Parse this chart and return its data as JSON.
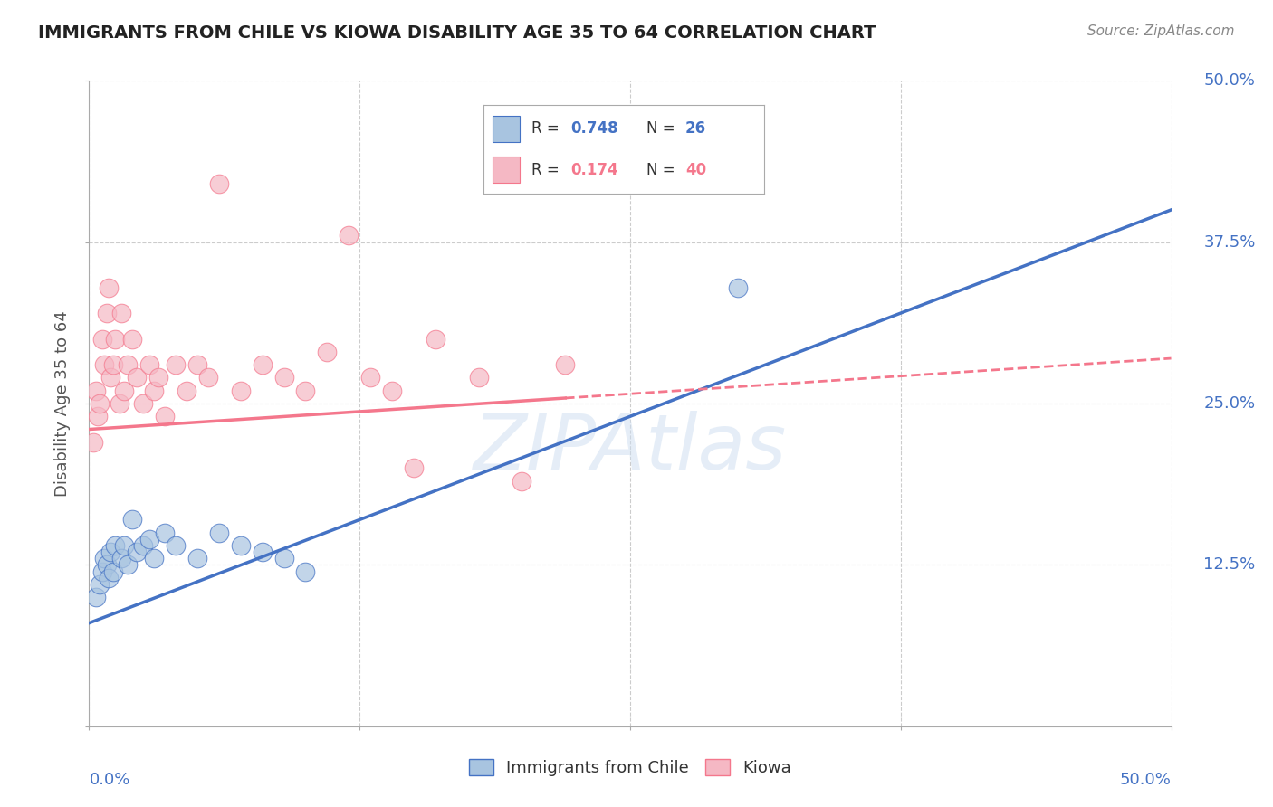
{
  "title": "IMMIGRANTS FROM CHILE VS KIOWA DISABILITY AGE 35 TO 64 CORRELATION CHART",
  "source": "Source: ZipAtlas.com",
  "ylabel": "Disability Age 35 to 64",
  "xlim": [
    0.0,
    50.0
  ],
  "ylim": [
    0.0,
    50.0
  ],
  "xticks": [
    0.0,
    12.5,
    25.0,
    37.5,
    50.0
  ],
  "yticks": [
    0.0,
    12.5,
    25.0,
    37.5,
    50.0
  ],
  "xtick_labels_left": "0.0%",
  "xtick_labels_right": "50.0%",
  "ytick_labels": [
    "12.5%",
    "25.0%",
    "37.5%",
    "50.0%"
  ],
  "blue_R": "0.748",
  "blue_N": "26",
  "pink_R": "0.174",
  "pink_N": "40",
  "blue_color": "#a8c4e0",
  "pink_color": "#f5b8c4",
  "blue_line_color": "#4472C4",
  "pink_line_color": "#F4778C",
  "legend_label_blue": "Immigrants from Chile",
  "legend_label_pink": "Kiowa",
  "watermark": "ZIPAtlas",
  "blue_scatter_x": [
    0.3,
    0.5,
    0.6,
    0.7,
    0.8,
    0.9,
    1.0,
    1.1,
    1.2,
    1.5,
    1.6,
    1.8,
    2.0,
    2.2,
    2.5,
    2.8,
    3.0,
    3.5,
    4.0,
    5.0,
    6.0,
    7.0,
    8.0,
    9.0,
    10.0,
    30.0
  ],
  "blue_scatter_y": [
    10.0,
    11.0,
    12.0,
    13.0,
    12.5,
    11.5,
    13.5,
    12.0,
    14.0,
    13.0,
    14.0,
    12.5,
    16.0,
    13.5,
    14.0,
    14.5,
    13.0,
    15.0,
    14.0,
    13.0,
    15.0,
    14.0,
    13.5,
    13.0,
    12.0,
    34.0
  ],
  "pink_scatter_x": [
    0.2,
    0.3,
    0.4,
    0.5,
    0.6,
    0.7,
    0.8,
    0.9,
    1.0,
    1.1,
    1.2,
    1.4,
    1.5,
    1.6,
    1.8,
    2.0,
    2.2,
    2.5,
    2.8,
    3.0,
    3.2,
    3.5,
    4.0,
    4.5,
    5.0,
    5.5,
    6.0,
    7.0,
    8.0,
    9.0,
    10.0,
    11.0,
    12.0,
    13.0,
    14.0,
    15.0,
    16.0,
    18.0,
    20.0,
    22.0
  ],
  "pink_scatter_y": [
    22.0,
    26.0,
    24.0,
    25.0,
    30.0,
    28.0,
    32.0,
    34.0,
    27.0,
    28.0,
    30.0,
    25.0,
    32.0,
    26.0,
    28.0,
    30.0,
    27.0,
    25.0,
    28.0,
    26.0,
    27.0,
    24.0,
    28.0,
    26.0,
    28.0,
    27.0,
    42.0,
    26.0,
    28.0,
    27.0,
    26.0,
    29.0,
    38.0,
    27.0,
    26.0,
    20.0,
    30.0,
    27.0,
    19.0,
    28.0
  ],
  "blue_line_x_start": 0.0,
  "blue_line_x_end": 50.0,
  "blue_line_y_start": 8.0,
  "blue_line_y_end": 40.0,
  "pink_line_x_solid_start": 0.0,
  "pink_line_x_solid_end": 22.0,
  "pink_line_x_dash_start": 22.0,
  "pink_line_x_dash_end": 50.0,
  "pink_line_y_start": 23.0,
  "pink_line_y_end": 28.5,
  "background_color": "#FFFFFF",
  "grid_color": "#CCCCCC",
  "tick_label_color": "#4472C4",
  "title_color": "#222222",
  "source_color": "#888888"
}
